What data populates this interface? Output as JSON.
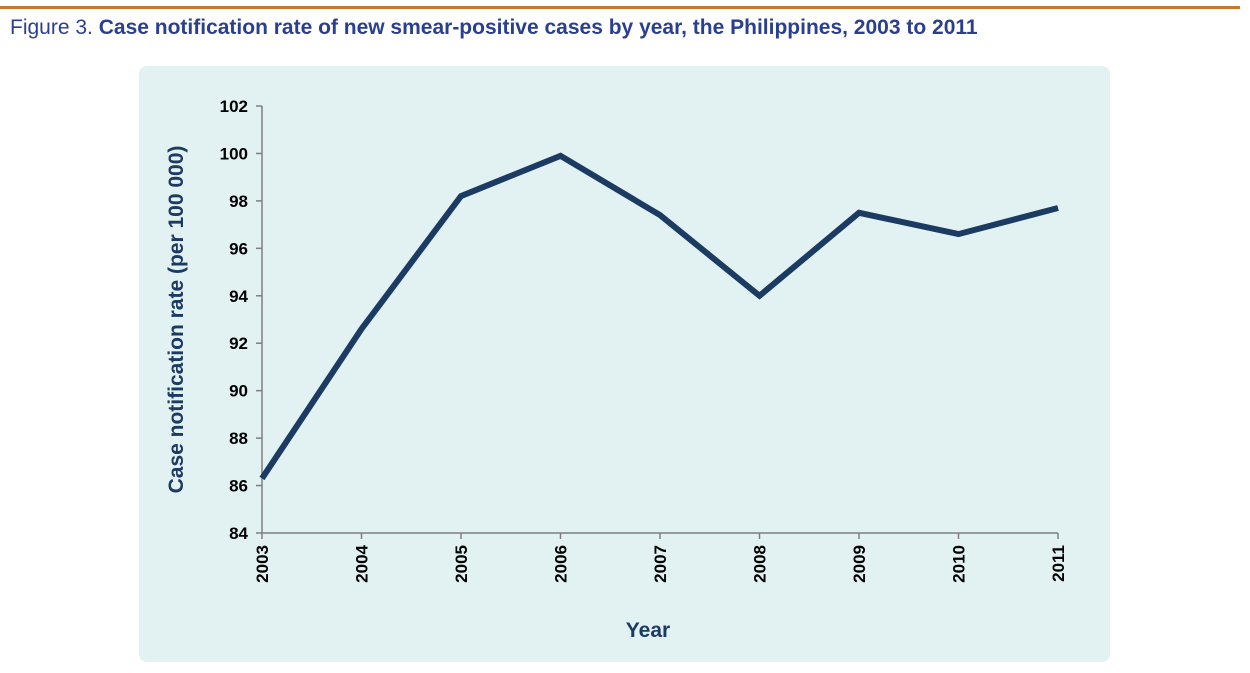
{
  "caption": {
    "label": "Figure 3.",
    "title": "Case notification rate of new smear-positive cases by year, the Philippines, 2003 to 2011"
  },
  "colors": {
    "rule": "#c8782a",
    "caption": "#2a3f8f",
    "panel": "#e2f1f1",
    "line": "#1c3b63",
    "axis": "#7f7f7f"
  },
  "chart_data": {
    "type": "line",
    "title": "Case notification rate of new smear-positive cases by year, the Philippines, 2003 to 2011",
    "xlabel": "Year",
    "ylabel": "Case notification rate (per 100 000)",
    "categories": [
      "2003",
      "2004",
      "2005",
      "2006",
      "2007",
      "2008",
      "2009",
      "2010",
      "2011"
    ],
    "series": [
      {
        "name": "Case notification rate",
        "values": [
          86.3,
          92.6,
          98.2,
          99.9,
          97.4,
          94.0,
          97.5,
          96.6,
          97.7
        ]
      }
    ],
    "ylim": [
      84,
      102
    ],
    "yticks": [
      "84",
      "86",
      "88",
      "90",
      "92",
      "94",
      "96",
      "98",
      "100",
      "102"
    ],
    "grid": false,
    "legend": "none"
  }
}
